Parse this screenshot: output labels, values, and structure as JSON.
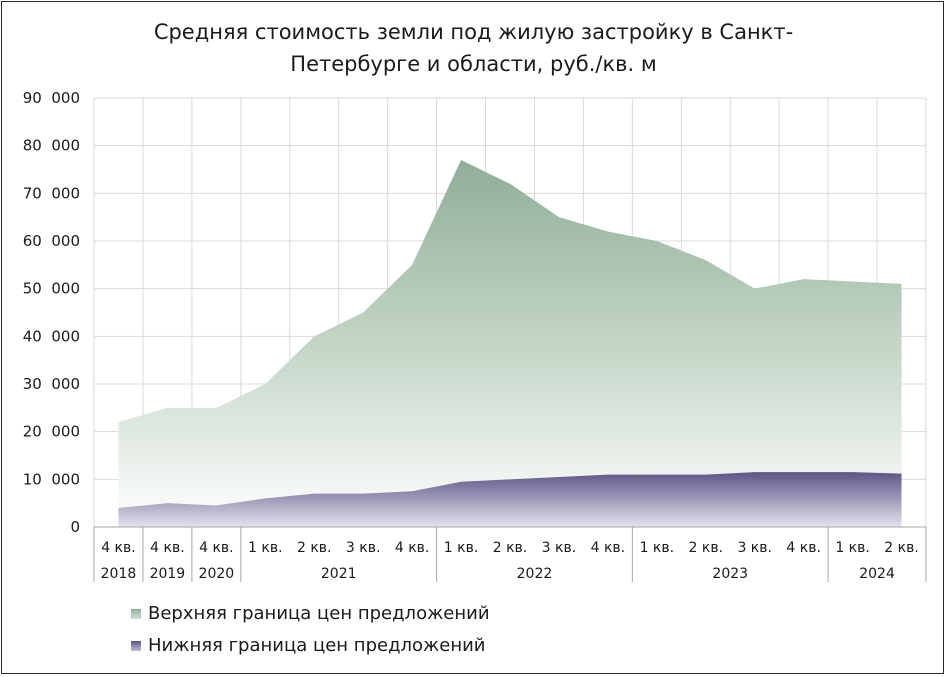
{
  "chart_data": {
    "type": "area",
    "title_line1": "Средняя стоимость земли под жилую застройку в Санкт-",
    "title_line2": "Петербурге и области, руб./кв. м",
    "ylim": [
      0,
      90000
    ],
    "y_ticks": [
      "0",
      "10  000",
      "20  000",
      "30  000",
      "40  000",
      "50  000",
      "60  000",
      "70  000",
      "80  000",
      "90  000"
    ],
    "quarters": [
      "4 кв.",
      "4 кв.",
      "4 кв.",
      "1 кв.",
      "2 кв.",
      "3 кв.",
      "4 кв.",
      "1 кв.",
      "2 кв.",
      "3 кв.",
      "4 кв.",
      "1 кв.",
      "2 кв.",
      "3 кв.",
      "4 кв.",
      "1 кв.",
      "2 кв."
    ],
    "years": [
      {
        "label": "2018",
        "span": 1
      },
      {
        "label": "2019",
        "span": 1
      },
      {
        "label": "2020",
        "span": 1
      },
      {
        "label": "2021",
        "span": 4
      },
      {
        "label": "2022",
        "span": 4
      },
      {
        "label": "2023",
        "span": 4
      },
      {
        "label": "2024",
        "span": 2
      }
    ],
    "series": [
      {
        "name": "Верхняя граница цен предложений",
        "color": "#8fae97",
        "values": [
          22000,
          25000,
          25000,
          30000,
          40000,
          45000,
          55000,
          77000,
          72000,
          65000,
          62000,
          60000,
          56000,
          50000,
          52000,
          51500,
          51000
        ]
      },
      {
        "name": "Нижняя граница цен предложений",
        "color": "#5e5485",
        "values": [
          4000,
          5000,
          4500,
          6000,
          7000,
          7000,
          7500,
          9500,
          10000,
          10500,
          11000,
          11000,
          11000,
          11500,
          11500,
          11500,
          11200
        ]
      }
    ]
  }
}
